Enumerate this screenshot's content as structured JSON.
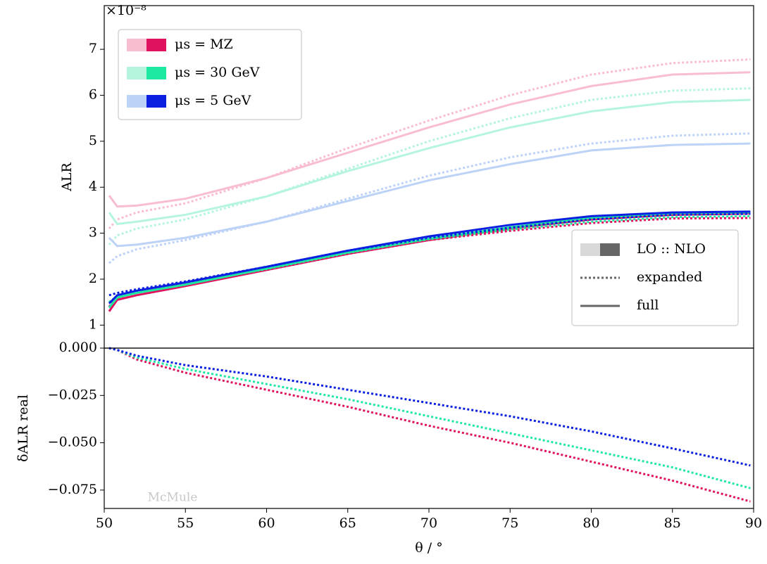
{
  "chart_data": [
    {
      "type": "line",
      "offset_label": "×10⁻⁸",
      "ylabel": "ALR",
      "xlim": [
        50,
        90
      ],
      "ylim": [
        0.5,
        7.95
      ],
      "yticks": [
        1,
        2,
        3,
        4,
        5,
        6,
        7
      ],
      "x": [
        50.3,
        50.8,
        52,
        55,
        60,
        65,
        70,
        75,
        80,
        85,
        89.8
      ],
      "legend": [
        {
          "label": "μs = MZ",
          "colors": [
            "#f9bdd0",
            "#e0115f"
          ]
        },
        {
          "label": "μs = 30 GeV",
          "colors": [
            "#b5f5dd",
            "#1de9a0"
          ]
        },
        {
          "label": "μs = 5 GeV",
          "colors": [
            "#bdd2f7",
            "#0a1fe0"
          ]
        }
      ],
      "style_legend": [
        {
          "label": "LO :: NLO",
          "colors": [
            "#d9d9d9",
            "#666666"
          ]
        },
        {
          "label": "expanded",
          "dash": "dotted",
          "color": "#666666"
        },
        {
          "label": "full",
          "dash": "solid",
          "color": "#666666"
        }
      ],
      "series": [
        {
          "color": "#f9bdd0",
          "dash": "solid",
          "values": [
            3.82,
            3.58,
            3.6,
            3.75,
            4.2,
            4.75,
            5.3,
            5.8,
            6.2,
            6.45,
            6.5
          ]
        },
        {
          "color": "#f9bdd0",
          "dash": "dotted",
          "values": [
            3.1,
            3.3,
            3.45,
            3.65,
            4.2,
            4.85,
            5.45,
            6.0,
            6.45,
            6.7,
            6.78
          ]
        },
        {
          "color": "#b5f5dd",
          "dash": "solid",
          "values": [
            3.45,
            3.2,
            3.25,
            3.4,
            3.8,
            4.35,
            4.85,
            5.3,
            5.65,
            5.85,
            5.9
          ]
        },
        {
          "color": "#b5f5dd",
          "dash": "dotted",
          "values": [
            2.75,
            2.95,
            3.1,
            3.3,
            3.8,
            4.4,
            5.0,
            5.5,
            5.9,
            6.1,
            6.15
          ]
        },
        {
          "color": "#bdd2f7",
          "dash": "solid",
          "values": [
            2.9,
            2.72,
            2.75,
            2.9,
            3.25,
            3.7,
            4.15,
            4.5,
            4.8,
            4.92,
            4.95
          ]
        },
        {
          "color": "#bdd2f7",
          "dash": "dotted",
          "values": [
            2.35,
            2.5,
            2.65,
            2.85,
            3.25,
            3.75,
            4.25,
            4.65,
            4.95,
            5.12,
            5.17
          ]
        },
        {
          "color": "#e0115f",
          "dash": "solid",
          "values": [
            1.3,
            1.55,
            1.65,
            1.85,
            2.2,
            2.55,
            2.85,
            3.1,
            3.3,
            3.4,
            3.43
          ]
        },
        {
          "color": "#e0115f",
          "dash": "dotted",
          "values": [
            1.4,
            1.6,
            1.7,
            1.9,
            2.2,
            2.55,
            2.85,
            3.05,
            3.22,
            3.32,
            3.33
          ]
        },
        {
          "color": "#1de9a0",
          "dash": "solid",
          "values": [
            1.38,
            1.6,
            1.7,
            1.88,
            2.23,
            2.58,
            2.88,
            3.13,
            3.33,
            3.43,
            3.45
          ]
        },
        {
          "color": "#1de9a0",
          "dash": "dotted",
          "values": [
            1.5,
            1.63,
            1.72,
            1.9,
            2.22,
            2.57,
            2.87,
            3.08,
            3.25,
            3.35,
            3.37
          ]
        },
        {
          "color": "#0a1fe0",
          "dash": "solid",
          "values": [
            1.47,
            1.65,
            1.75,
            1.93,
            2.27,
            2.62,
            2.93,
            3.18,
            3.37,
            3.45,
            3.47
          ]
        },
        {
          "color": "#0a1fe0",
          "dash": "dotted",
          "values": [
            1.65,
            1.7,
            1.78,
            1.95,
            2.27,
            2.62,
            2.9,
            3.12,
            3.3,
            3.4,
            3.42
          ]
        }
      ]
    },
    {
      "type": "line",
      "ylabel": "δALR real",
      "xlabel": "θ / °",
      "watermark": "McMule",
      "xlim": [
        50,
        90
      ],
      "ylim": [
        -0.0847,
        0.0
      ],
      "xticks": [
        50,
        55,
        60,
        65,
        70,
        75,
        80,
        85,
        90
      ],
      "yticks": [
        {
          "value": 0.0,
          "label": "0.000"
        },
        {
          "value": -0.025,
          "label": "−0.025"
        },
        {
          "value": -0.05,
          "label": "−0.050"
        },
        {
          "value": -0.075,
          "label": "−0.075"
        }
      ],
      "x": [
        50.3,
        50.8,
        52,
        55,
        60,
        65,
        70,
        75,
        80,
        85,
        89.8
      ],
      "series": [
        {
          "color": "#e0115f",
          "dash": "dotted",
          "values": [
            0,
            -0.001,
            -0.006,
            -0.013,
            -0.022,
            -0.031,
            -0.041,
            -0.05,
            -0.06,
            -0.07,
            -0.081
          ]
        },
        {
          "color": "#1de9a0",
          "dash": "dotted",
          "values": [
            0,
            -0.001,
            -0.005,
            -0.011,
            -0.019,
            -0.027,
            -0.036,
            -0.045,
            -0.054,
            -0.063,
            -0.074
          ]
        },
        {
          "color": "#0a1fe0",
          "dash": "dotted",
          "values": [
            0,
            -0.001,
            -0.004,
            -0.009,
            -0.015,
            -0.022,
            -0.029,
            -0.036,
            -0.044,
            -0.053,
            -0.062
          ]
        }
      ]
    }
  ]
}
